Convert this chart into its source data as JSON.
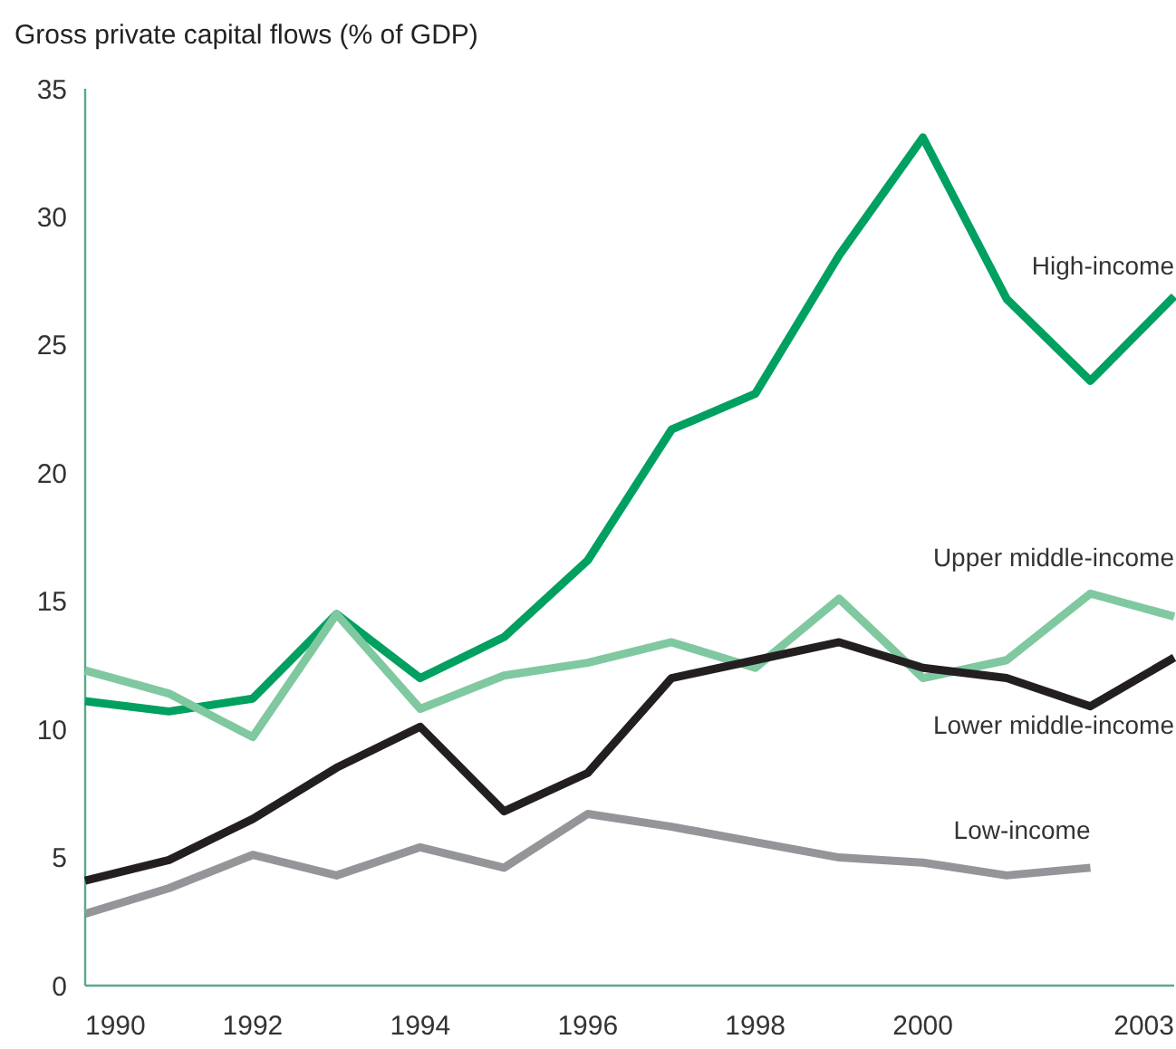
{
  "chart_data": {
    "type": "line",
    "title": "Gross private capital flows (% of GDP)",
    "x": [
      1990,
      1991,
      1992,
      1993,
      1994,
      1995,
      1996,
      1997,
      1998,
      1999,
      2000,
      2001,
      2002,
      2003
    ],
    "xlim": [
      1990,
      2003
    ],
    "xticks": [
      1990,
      1992,
      1994,
      1996,
      1998,
      2000,
      2003
    ],
    "ylim": [
      0,
      35
    ],
    "yticks": [
      0,
      5,
      10,
      15,
      20,
      25,
      30,
      35
    ],
    "grid": false,
    "legend": false,
    "marker": "none",
    "line_style": "solid",
    "series": [
      {
        "name": "High-income",
        "color": "#00a060",
        "values": [
          11.1,
          10.7,
          11.2,
          14.5,
          12.0,
          13.6,
          16.6,
          21.7,
          23.1,
          28.5,
          33.1,
          26.8,
          23.6,
          26.9
        ]
      },
      {
        "name": "Upper middle-income",
        "color": "#7fc8a0",
        "values": [
          12.3,
          11.4,
          9.7,
          14.5,
          10.8,
          12.1,
          12.6,
          13.4,
          12.4,
          15.1,
          12.0,
          12.7,
          15.3,
          14.4
        ]
      },
      {
        "name": "Lower middle-income",
        "color": "#231f20",
        "values": [
          4.1,
          4.9,
          6.5,
          8.5,
          10.1,
          6.8,
          8.3,
          12.0,
          12.7,
          13.4,
          12.4,
          12.0,
          10.9,
          12.8
        ]
      },
      {
        "name": "Low-income",
        "color": "#939598",
        "values": [
          2.8,
          3.8,
          5.1,
          4.3,
          5.4,
          4.6,
          6.7,
          6.2,
          5.6,
          5.0,
          4.8,
          4.3,
          4.6,
          null
        ]
      }
    ]
  }
}
